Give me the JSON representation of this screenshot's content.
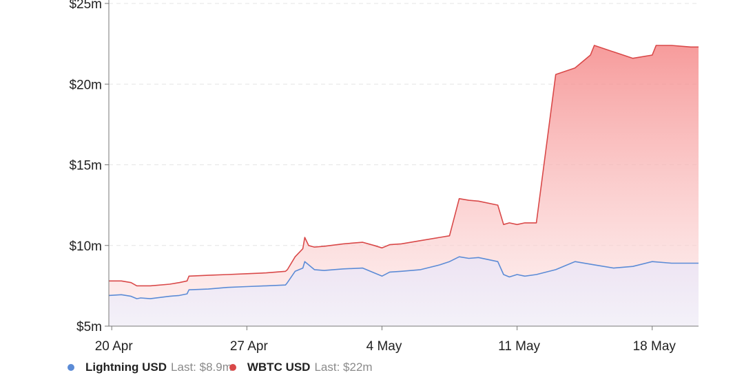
{
  "chart_data": {
    "type": "area",
    "y_ticks": [
      "$5m",
      "$10m",
      "$15m",
      "$20m",
      "$25m"
    ],
    "ylim": [
      5,
      25
    ],
    "x_ticks": [
      "20 Apr",
      "27 Apr",
      "4 May",
      "11 May",
      "18 May"
    ],
    "x_tick_days": [
      0,
      7,
      14,
      21,
      28
    ],
    "xlim": [
      -0.15,
      30.4
    ],
    "grid": true,
    "legend_position": "bottom-left",
    "series": [
      {
        "name": "Lightning USD",
        "last_label": "Last: $8.9m",
        "color": "#5b8bd6",
        "x": [
          -0.15,
          0.5,
          1,
          1.3,
          1.5,
          2,
          3,
          3.5,
          3.9,
          4,
          5,
          6,
          7,
          8,
          9,
          9.1,
          9.5,
          9.9,
          10,
          10.5,
          11,
          12,
          13,
          13.6,
          14,
          14.4,
          15,
          16,
          17,
          17.5,
          18,
          18.5,
          19,
          20,
          20.3,
          20.6,
          21,
          21.4,
          22,
          23,
          24,
          25,
          26,
          27,
          28,
          29,
          30,
          30.4
        ],
        "y": [
          6.9,
          6.95,
          6.85,
          6.7,
          6.75,
          6.7,
          6.85,
          6.9,
          7.0,
          7.25,
          7.3,
          7.4,
          7.45,
          7.5,
          7.55,
          7.7,
          8.4,
          8.6,
          9.0,
          8.5,
          8.45,
          8.55,
          8.6,
          8.3,
          8.1,
          8.35,
          8.4,
          8.5,
          8.8,
          9.0,
          9.3,
          9.2,
          9.25,
          9.0,
          8.2,
          8.05,
          8.2,
          8.1,
          8.2,
          8.5,
          9.0,
          8.8,
          8.6,
          8.7,
          9.0,
          8.9,
          8.9,
          8.9
        ]
      },
      {
        "name": "WBTC USD",
        "last_label": "Last: $22m",
        "color": "#d94848",
        "x": [
          -0.15,
          0.5,
          1,
          1.3,
          1.5,
          2,
          3,
          3.5,
          3.9,
          4,
          5,
          6,
          7,
          8,
          9,
          9.1,
          9.5,
          9.9,
          10,
          10.2,
          10.5,
          11,
          12,
          13,
          13.6,
          14,
          14.4,
          15,
          16,
          17,
          17.5,
          18,
          18.5,
          19,
          20,
          20.3,
          20.6,
          21,
          21.4,
          22,
          23,
          24,
          24.8,
          25,
          26,
          27,
          28,
          28.2,
          29,
          30,
          30.4
        ],
        "y": [
          7.8,
          7.8,
          7.7,
          7.5,
          7.5,
          7.5,
          7.6,
          7.7,
          7.8,
          8.1,
          8.15,
          8.2,
          8.25,
          8.3,
          8.4,
          8.5,
          9.3,
          9.8,
          10.5,
          10.0,
          9.9,
          9.95,
          10.1,
          10.2,
          10.0,
          9.85,
          10.05,
          10.1,
          10.3,
          10.5,
          10.6,
          12.9,
          12.8,
          12.75,
          12.5,
          11.3,
          11.4,
          11.3,
          11.4,
          11.4,
          20.6,
          21.0,
          21.8,
          22.4,
          22.0,
          21.6,
          21.8,
          22.4,
          22.4,
          22.3,
          22.3
        ]
      }
    ]
  }
}
